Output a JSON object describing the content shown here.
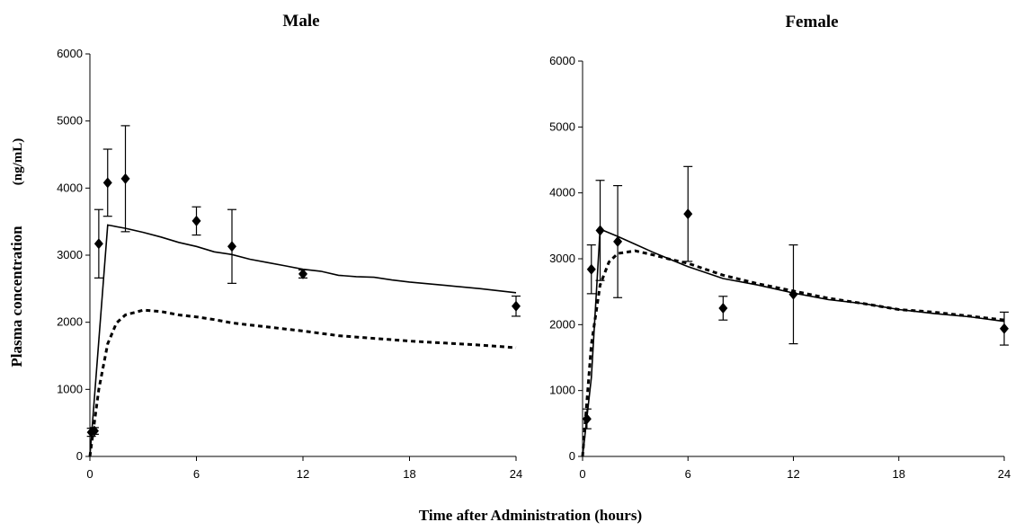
{
  "figure": {
    "shared_xlabel": "Time after Administration (hours)",
    "shared_ylabel": "Plasma concentration",
    "ylabel_units": "(ng/mL)"
  },
  "chart_data": [
    {
      "type": "line",
      "title": "Male",
      "xlim": [
        0,
        24
      ],
      "ylim": [
        0,
        6000
      ],
      "xticks": [
        0,
        6,
        12,
        18,
        24
      ],
      "yticks": [
        0,
        1000,
        2000,
        3000,
        4000,
        5000,
        6000
      ],
      "xtick_labels": [
        "0",
        "6",
        "12",
        "18",
        "24"
      ],
      "ytick_labels": [
        "0",
        "1000",
        "2000",
        "3000",
        "4000",
        "5000",
        "6000"
      ],
      "grid": false,
      "series": [
        {
          "style": "markers-errorbars",
          "points": [
            {
              "x": 0.083,
              "y": 360,
              "err": 60
            },
            {
              "x": 0.25,
              "y": 380,
              "err": 50
            },
            {
              "x": 0.5,
              "y": 3170,
              "err": 510
            },
            {
              "x": 1,
              "y": 4080,
              "err": 500
            },
            {
              "x": 2,
              "y": 4140,
              "err": 790
            },
            {
              "x": 6,
              "y": 3510,
              "err": 210
            },
            {
              "x": 8,
              "y": 3130,
              "err": 550
            },
            {
              "x": 12,
              "y": 2720,
              "err": 60
            },
            {
              "x": 24,
              "y": 2240,
              "err": 150
            }
          ]
        },
        {
          "style": "solid",
          "x": [
            0,
            1,
            2,
            3,
            4,
            5,
            6,
            7,
            8,
            9,
            10,
            11,
            12,
            13,
            14,
            15,
            16,
            17,
            18,
            20,
            22,
            24
          ],
          "y": [
            0,
            3450,
            3400,
            3340,
            3270,
            3190,
            3130,
            3050,
            3010,
            2940,
            2890,
            2840,
            2790,
            2760,
            2700,
            2680,
            2670,
            2630,
            2600,
            2550,
            2500,
            2440
          ]
        },
        {
          "style": "dashed",
          "x": [
            0,
            0.5,
            1,
            1.5,
            2,
            3,
            4,
            5,
            6,
            7,
            8,
            9,
            10,
            12,
            14,
            16,
            18,
            20,
            22,
            24
          ],
          "y": [
            0,
            1000,
            1680,
            1990,
            2110,
            2180,
            2160,
            2110,
            2080,
            2040,
            1990,
            1960,
            1930,
            1870,
            1800,
            1760,
            1720,
            1690,
            1660,
            1620
          ]
        }
      ]
    },
    {
      "type": "line",
      "title": "Female",
      "xlim": [
        0,
        24
      ],
      "ylim": [
        0,
        6000
      ],
      "xticks": [
        0,
        6,
        12,
        18,
        24
      ],
      "yticks": [
        0,
        1000,
        2000,
        3000,
        4000,
        5000,
        6000
      ],
      "xtick_labels": [
        "0",
        "6",
        "12",
        "18",
        "24"
      ],
      "ytick_labels": [
        "0",
        "1000",
        "2000",
        "3000",
        "4000",
        "5000",
        "6000"
      ],
      "grid": false,
      "series": [
        {
          "style": "markers-errorbars",
          "points": [
            {
              "x": 0.25,
              "y": 570,
              "err": 150
            },
            {
              "x": 0.5,
              "y": 2840,
              "err": 370
            },
            {
              "x": 1,
              "y": 3430,
              "err": 760
            },
            {
              "x": 2,
              "y": 3260,
              "err": 850
            },
            {
              "x": 6,
              "y": 3680,
              "err": 720
            },
            {
              "x": 8,
              "y": 2250,
              "err": 180
            },
            {
              "x": 12,
              "y": 2460,
              "err": 750
            },
            {
              "x": 24,
              "y": 1940,
              "err": 250
            }
          ]
        },
        {
          "style": "solid",
          "x": [
            0,
            0.5,
            1,
            2,
            3,
            4,
            5,
            6,
            8,
            10,
            12,
            14,
            16,
            18,
            20,
            22,
            24
          ],
          "y": [
            0,
            1200,
            3450,
            3340,
            3220,
            3100,
            2990,
            2880,
            2700,
            2600,
            2480,
            2380,
            2320,
            2230,
            2170,
            2120,
            2050
          ]
        },
        {
          "style": "dashed",
          "x": [
            0,
            0.5,
            1,
            1.5,
            2,
            3,
            4,
            5,
            6,
            8,
            10,
            12,
            14,
            16,
            18,
            20,
            22,
            24
          ],
          "y": [
            0,
            1700,
            2600,
            2950,
            3080,
            3120,
            3060,
            2990,
            2930,
            2750,
            2620,
            2510,
            2400,
            2320,
            2230,
            2190,
            2130,
            2070
          ]
        }
      ]
    }
  ]
}
